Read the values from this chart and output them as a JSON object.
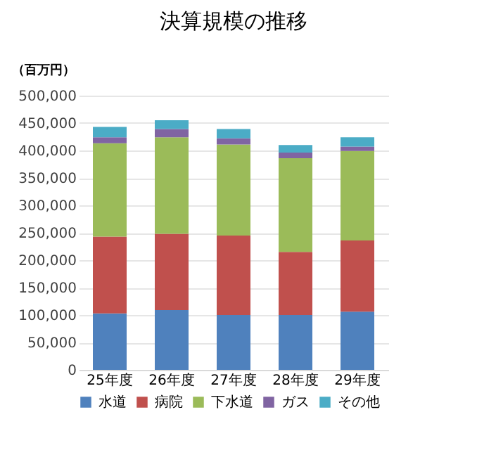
{
  "chart_data": {
    "type": "bar",
    "title": "決算規模の推移",
    "ylabel": "（百万円）",
    "categories": [
      "25年度",
      "26年度",
      "27年度",
      "28年度",
      "29年度"
    ],
    "stacked": true,
    "grid": "y",
    "legend": "bottom",
    "ylim": [
      0,
      500000
    ],
    "yticks": [
      0,
      {
        "value": 50000,
        "label": "50,000"
      },
      {
        "value": 100000,
        "label": "100,000"
      },
      {
        "value": 150000,
        "label": "150,000"
      },
      {
        "value": 200000,
        "label": "200,000"
      },
      {
        "value": 250000,
        "label": "250,000"
      },
      {
        "value": 300000,
        "label": "300,000"
      },
      {
        "value": 350000,
        "label": "350,000"
      },
      {
        "value": 400000,
        "label": "400,000"
      },
      {
        "value": 450000,
        "label": "450,000"
      },
      {
        "value": 500000,
        "label": "500,000"
      }
    ],
    "series": [
      {
        "name": "水道",
        "color": "#4f81bd",
        "values": [
          103000,
          109000,
          100000,
          100000,
          106000
        ]
      },
      {
        "name": "病院",
        "color": "#c0504d",
        "values": [
          140000,
          139000,
          145000,
          115000,
          130000
        ]
      },
      {
        "name": "下水道",
        "color": "#9bbb59",
        "values": [
          170000,
          176000,
          166000,
          171000,
          163000
        ]
      },
      {
        "name": "ガス",
        "color": "#8064a2",
        "values": [
          11000,
          15000,
          11000,
          10000,
          8000
        ]
      },
      {
        "name": "その他",
        "color": "#4bacc6",
        "values": [
          19000,
          16000,
          17000,
          14000,
          17000
        ]
      }
    ]
  }
}
